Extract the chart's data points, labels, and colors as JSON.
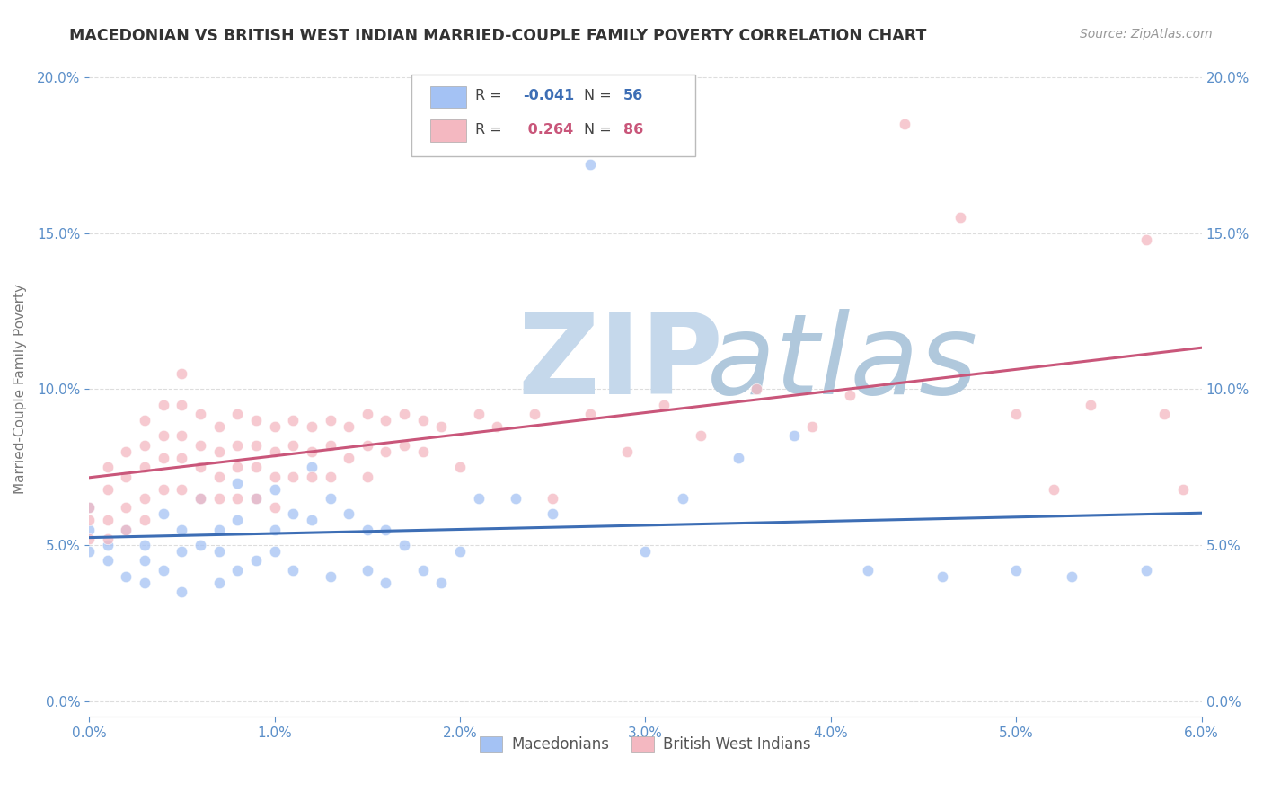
{
  "title": "MACEDONIAN VS BRITISH WEST INDIAN MARRIED-COUPLE FAMILY POVERTY CORRELATION CHART",
  "source": "Source: ZipAtlas.com",
  "ylabel_label": "Married-Couple Family Poverty",
  "xlim": [
    0.0,
    0.06
  ],
  "ylim": [
    -0.005,
    0.205
  ],
  "xticks": [
    0.0,
    0.01,
    0.02,
    0.03,
    0.04,
    0.05,
    0.06
  ],
  "yticks": [
    0.0,
    0.05,
    0.1,
    0.15,
    0.2
  ],
  "macedonian_color": "#a4c2f4",
  "british_wi_color": "#f4b8c1",
  "macedonian_line_color": "#3d6eb5",
  "british_wi_line_color": "#c9567a",
  "macedonian_R": -0.041,
  "british_wi_R": 0.264,
  "macedonian_N": 56,
  "british_wi_N": 86,
  "background_color": "#ffffff",
  "grid_color": "#dddddd",
  "watermark_zip": "ZIP",
  "watermark_atlas": "atlas",
  "watermark_color_zip": "#c8d8ea",
  "watermark_color_atlas": "#b8c8d8"
}
